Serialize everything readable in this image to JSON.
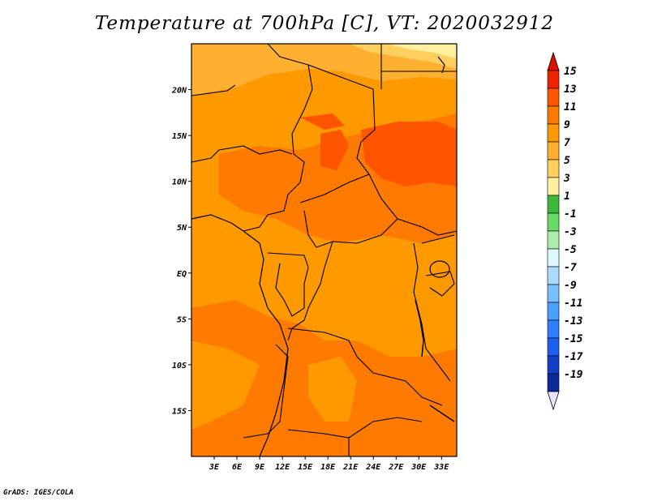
{
  "title": "Temperature at 700hPa [C], VT: 2020032912",
  "credit": "GrADS: IGES/COLA",
  "map": {
    "lon_range": [
      0,
      35
    ],
    "lat_range": [
      -20,
      25
    ],
    "lat_ticks": [
      "20N",
      "15N",
      "10N",
      "5N",
      "EQ",
      "5S",
      "10S",
      "15S"
    ],
    "lat_tick_values": [
      20,
      15,
      10,
      5,
      0,
      -5,
      -10,
      -15
    ],
    "lon_ticks": [
      "3E",
      "6E",
      "9E",
      "12E",
      "15E",
      "18E",
      "21E",
      "24E",
      "27E",
      "30E",
      "33E"
    ],
    "lon_tick_values": [
      3,
      6,
      9,
      12,
      15,
      18,
      21,
      24,
      27,
      30,
      33
    ]
  },
  "colorbar": {
    "labels": [
      "15",
      "13",
      "11",
      "9",
      "7",
      "5",
      "3",
      "1",
      "-1",
      "-3",
      "-5",
      "-7",
      "-9",
      "-11",
      "-13",
      "-15",
      "-17",
      "-19"
    ],
    "colors": [
      "#ee2200",
      "#ff5500",
      "#ff7a00",
      "#ff9900",
      "#ffb030",
      "#ffd060",
      "#fff0a0",
      "#3db83d",
      "#66d966",
      "#aaeeaa",
      "#ddf6ff",
      "#aadaff",
      "#78bfff",
      "#4b9fff",
      "#2e7eff",
      "#1e5ef0",
      "#1040c8",
      "#0a2a96",
      "#0a0a5a"
    ],
    "top_color": "#dd1100",
    "bottom_color": "#e8e4ff"
  }
}
